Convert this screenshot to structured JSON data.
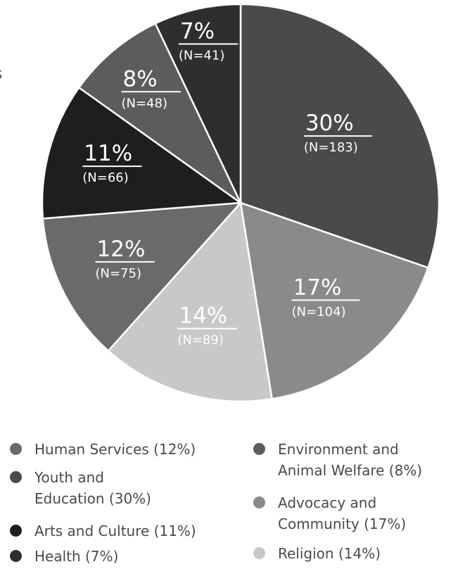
{
  "clipped_text": "s",
  "chart_data": {
    "type": "pie",
    "slices": [
      {
        "category": "Youth and Education",
        "percent": 30,
        "pct_label": "30%",
        "n_label": "(N=183)",
        "value": 183,
        "color": "#4a4a4a"
      },
      {
        "category": "Advocacy and Community",
        "percent": 17,
        "pct_label": "17%",
        "n_label": "(N=104)",
        "value": 104,
        "color": "#8a8a8a"
      },
      {
        "category": "Religion",
        "percent": 14,
        "pct_label": "14%",
        "n_label": "(N=89)",
        "value": 89,
        "color": "#c8c8c8"
      },
      {
        "category": "Human Services",
        "percent": 12,
        "pct_label": "12%",
        "n_label": "(N=75)",
        "value": 75,
        "color": "#6a6a6a"
      },
      {
        "category": "Arts and Culture",
        "percent": 11,
        "pct_label": "11%",
        "n_label": "(N=66)",
        "value": 66,
        "color": "#1e1e1e"
      },
      {
        "category": "Environment and Animal Welfare",
        "percent": 8,
        "pct_label": "8%",
        "n_label": "(N=48)",
        "value": 48,
        "color": "#5c5c5c"
      },
      {
        "category": "Health",
        "percent": 7,
        "pct_label": "7%",
        "n_label": "(N=41)",
        "value": 41,
        "color": "#2e2e2e"
      }
    ],
    "legend": [
      {
        "line1": "Human Services (12%)",
        "line2": "",
        "color": "#6a6a6a"
      },
      {
        "line1": "Youth and",
        "line2": "Education (30%)",
        "color": "#4a4a4a"
      },
      {
        "line1": "Arts and Culture (11%)",
        "line2": "",
        "color": "#1e1e1e"
      },
      {
        "line1": "Health (7%)",
        "line2": "",
        "color": "#2e2e2e"
      },
      {
        "line1": "Environment and",
        "line2": "Animal Welfare (8%)",
        "color": "#5c5c5c"
      },
      {
        "line1": "Advocacy and",
        "line2": "Community (17%)",
        "color": "#8a8a8a"
      },
      {
        "line1": "Religion (14%)",
        "line2": "",
        "color": "#c8c8c8"
      }
    ],
    "legend_placement": "bottom"
  }
}
